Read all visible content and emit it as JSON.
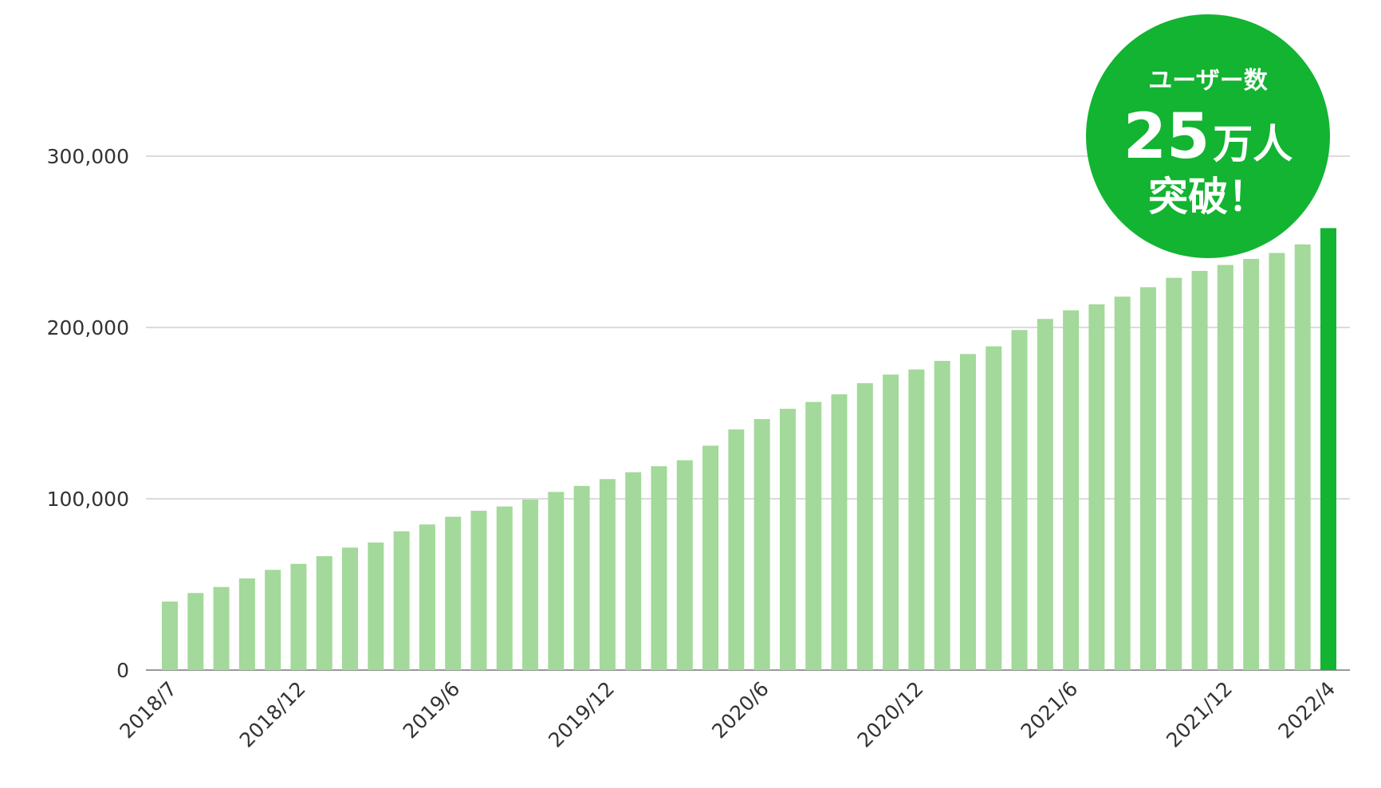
{
  "chart_data": {
    "type": "bar",
    "categories": [
      "2018/7",
      "2018/8",
      "2018/9",
      "2018/10",
      "2018/11",
      "2018/12",
      "2019/1",
      "2019/2",
      "2019/3",
      "2019/4",
      "2019/5",
      "2019/6",
      "2019/7",
      "2019/8",
      "2019/9",
      "2019/10",
      "2019/11",
      "2019/12",
      "2020/1",
      "2020/2",
      "2020/3",
      "2020/4",
      "2020/5",
      "2020/6",
      "2020/7",
      "2020/8",
      "2020/9",
      "2020/10",
      "2020/11",
      "2020/12",
      "2021/1",
      "2021/2",
      "2021/3",
      "2021/4",
      "2021/5",
      "2021/6",
      "2021/7",
      "2021/8",
      "2021/9",
      "2021/10",
      "2021/11",
      "2021/12",
      "2022/1",
      "2022/2",
      "2022/3",
      "2022/4"
    ],
    "values": [
      40000,
      45000,
      48500,
      53500,
      58500,
      62000,
      66500,
      71500,
      74500,
      81000,
      85000,
      89500,
      93000,
      95500,
      99500,
      104000,
      107500,
      111500,
      115500,
      119000,
      122500,
      131000,
      140500,
      146500,
      152500,
      156500,
      161000,
      167500,
      172500,
      175500,
      180500,
      184500,
      189000,
      198500,
      205000,
      210000,
      213500,
      218000,
      223500,
      229000,
      233000,
      236500,
      240000,
      243500,
      248500,
      258000
    ],
    "visible_x_ticks": [
      "2018/7",
      "2018/12",
      "2019/6",
      "2019/12",
      "2020/6",
      "2020/12",
      "2021/6",
      "2021/12",
      "2022/4"
    ],
    "y_ticks": [
      "0",
      "100,000",
      "200,000",
      "300,000"
    ],
    "ylim": [
      0,
      300000
    ],
    "highlight_index": 45,
    "colors": {
      "bar": "#a3d99a",
      "highlight": "#12b431",
      "badge": "#12b431"
    },
    "title": "",
    "xlabel": "",
    "ylabel": "",
    "grid": true,
    "legend": "none"
  },
  "badge": {
    "line1": "ユーザー数",
    "number": "25",
    "unit": "万人",
    "line3": "突破！"
  }
}
